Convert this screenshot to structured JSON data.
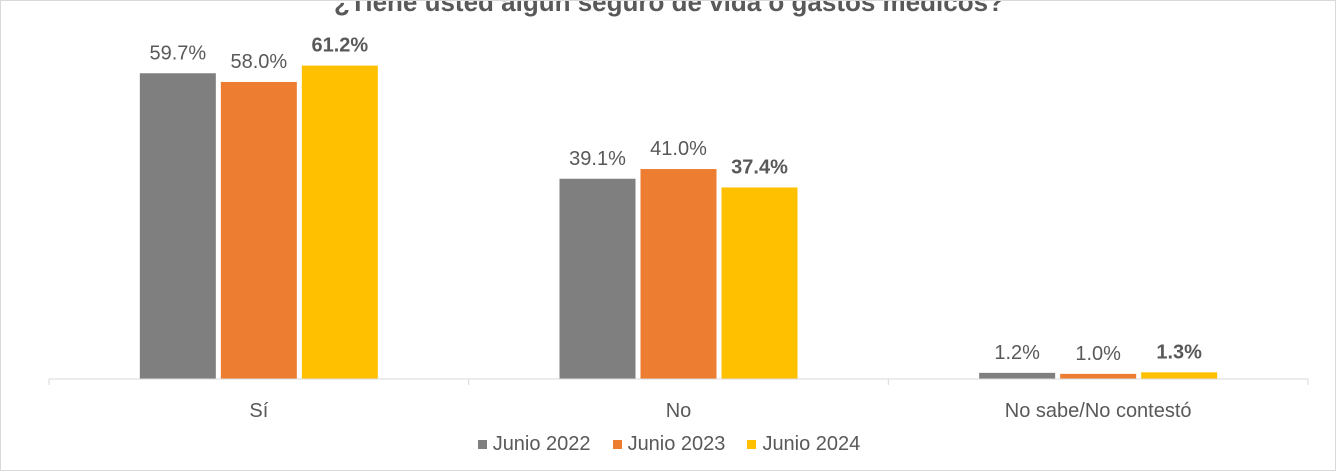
{
  "chart_data": {
    "type": "bar",
    "title": "¿Tiene usted algún seguro de vida o gastos médicos?",
    "categories": [
      "Sí",
      "No",
      "No sabe/No contestó"
    ],
    "series": [
      {
        "name": "Junio 2022",
        "color": "#7f7f7f",
        "values": [
          59.7,
          39.1,
          1.2
        ],
        "labels": [
          "59.7%",
          "39.1%",
          "1.2%"
        ],
        "bold": false
      },
      {
        "name": "Junio 2023",
        "color": "#ed7d31",
        "values": [
          58.0,
          41.0,
          1.0
        ],
        "labels": [
          "58.0%",
          "41.0%",
          "1.0%"
        ],
        "bold": false
      },
      {
        "name": "Junio 2024",
        "color": "#ffc000",
        "values": [
          61.2,
          37.4,
          1.3
        ],
        "labels": [
          "61.2%",
          "37.4%",
          "1.3%"
        ],
        "bold": true
      }
    ],
    "ylim": [
      0,
      66
    ],
    "grid": false,
    "legend_position": "bottom",
    "axis_color": "#d9d9d9",
    "label_color": "#595959"
  }
}
